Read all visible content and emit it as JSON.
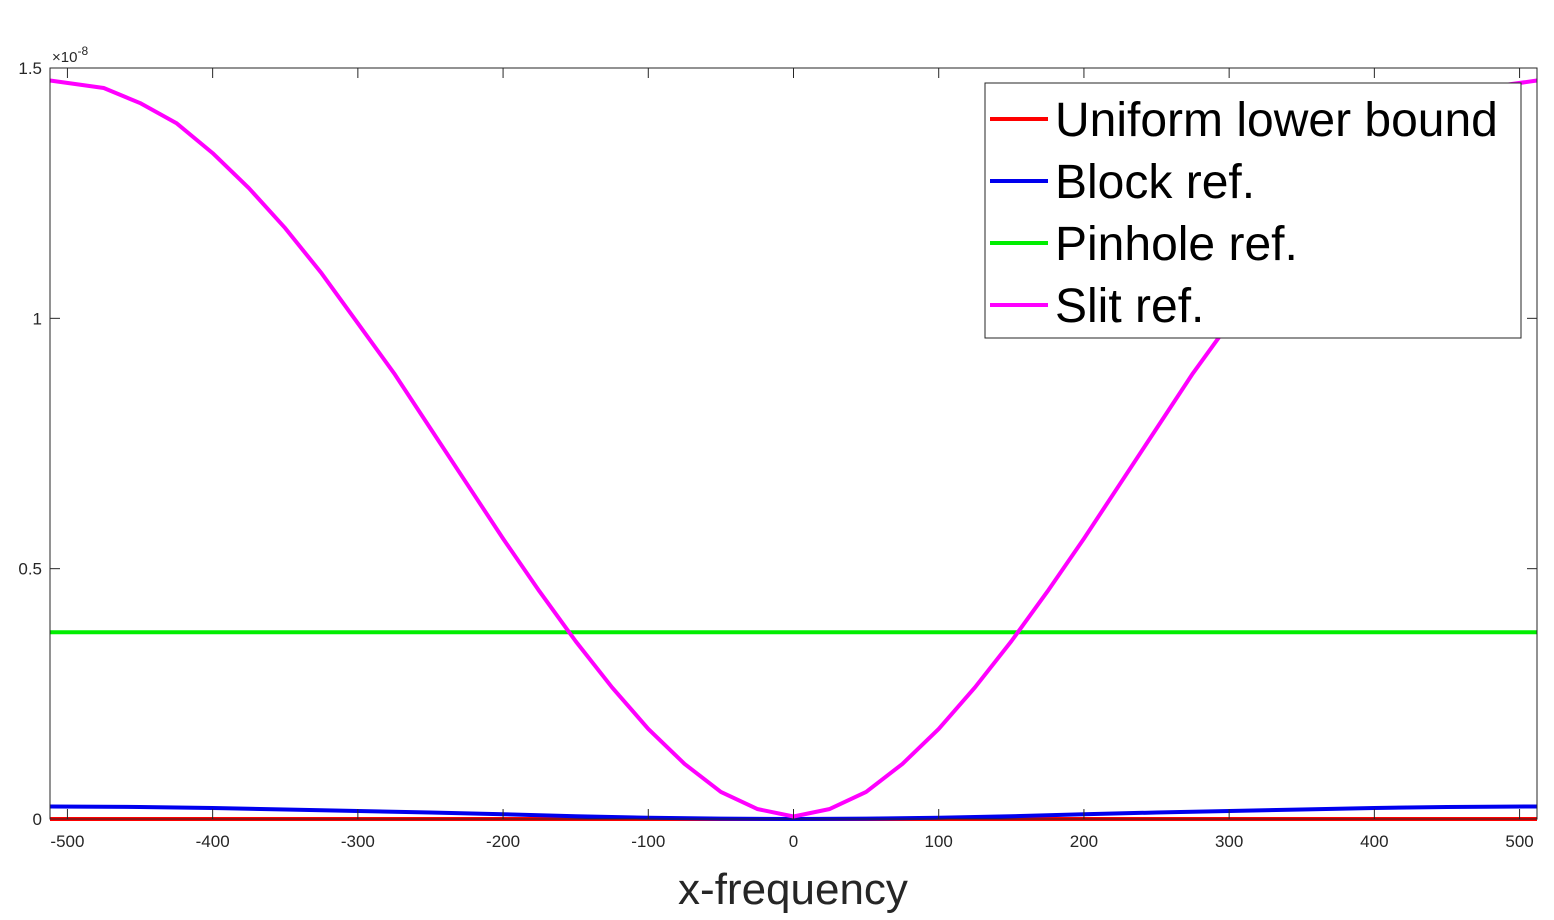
{
  "chart_data": {
    "type": "line",
    "title": "",
    "xlabel": "x-frequency",
    "ylabel": "",
    "xlim": [
      -512,
      512
    ],
    "ylim": [
      0,
      1.5
    ],
    "y_exponent_label": {
      "prefix": "×10",
      "exponent": "-8"
    },
    "xticks": [
      -500,
      -400,
      -300,
      -200,
      -100,
      0,
      100,
      200,
      300,
      400,
      500
    ],
    "xtick_labels": [
      "-500",
      "-400",
      "-300",
      "-200",
      "-100",
      "0",
      "100",
      "200",
      "300",
      "400",
      "500"
    ],
    "yticks": [
      0,
      0.5,
      1,
      1.5
    ],
    "ytick_labels": [
      "0",
      "0.5",
      "1",
      "1.5"
    ],
    "grid": false,
    "legend_position": "top-right",
    "series": [
      {
        "name": "Uniform lower bound",
        "color": "#ff0000",
        "x": [
          -512,
          512
        ],
        "y": [
          0.0,
          0.0
        ]
      },
      {
        "name": "Block ref.",
        "color": "#0000ee",
        "x": [
          -512,
          -450,
          -400,
          -350,
          -300,
          -250,
          -200,
          -150,
          -100,
          -50,
          0,
          50,
          100,
          150,
          200,
          250,
          300,
          350,
          400,
          450,
          512
        ],
        "y": [
          0.025,
          0.024,
          0.022,
          0.019,
          0.016,
          0.013,
          0.0095,
          0.0055,
          0.0025,
          0.0007,
          0.0,
          0.0007,
          0.0025,
          0.0055,
          0.0095,
          0.013,
          0.016,
          0.019,
          0.022,
          0.024,
          0.025
        ]
      },
      {
        "name": "Pinhole ref.",
        "color": "#00ee00",
        "x": [
          -512,
          512
        ],
        "y": [
          0.373,
          0.373
        ]
      },
      {
        "name": "Slit ref.",
        "color": "#ff00ff",
        "x": [
          -512,
          -475,
          -450,
          -425,
          -400,
          -375,
          -350,
          -325,
          -300,
          -275,
          -250,
          -225,
          -200,
          -175,
          -150,
          -125,
          -100,
          -75,
          -50,
          -25,
          0,
          25,
          50,
          75,
          100,
          125,
          150,
          175,
          200,
          225,
          250,
          275,
          300,
          325,
          350,
          375,
          400,
          425,
          450,
          475,
          512
        ],
        "y": [
          1.475,
          1.46,
          1.43,
          1.39,
          1.33,
          1.26,
          1.18,
          1.09,
          0.99,
          0.89,
          0.78,
          0.67,
          0.56,
          0.455,
          0.355,
          0.263,
          0.18,
          0.11,
          0.054,
          0.02,
          0.005,
          0.02,
          0.054,
          0.11,
          0.18,
          0.263,
          0.355,
          0.455,
          0.56,
          0.67,
          0.78,
          0.89,
          0.99,
          1.09,
          1.18,
          1.26,
          1.33,
          1.39,
          1.43,
          1.46,
          1.475
        ]
      }
    ]
  }
}
